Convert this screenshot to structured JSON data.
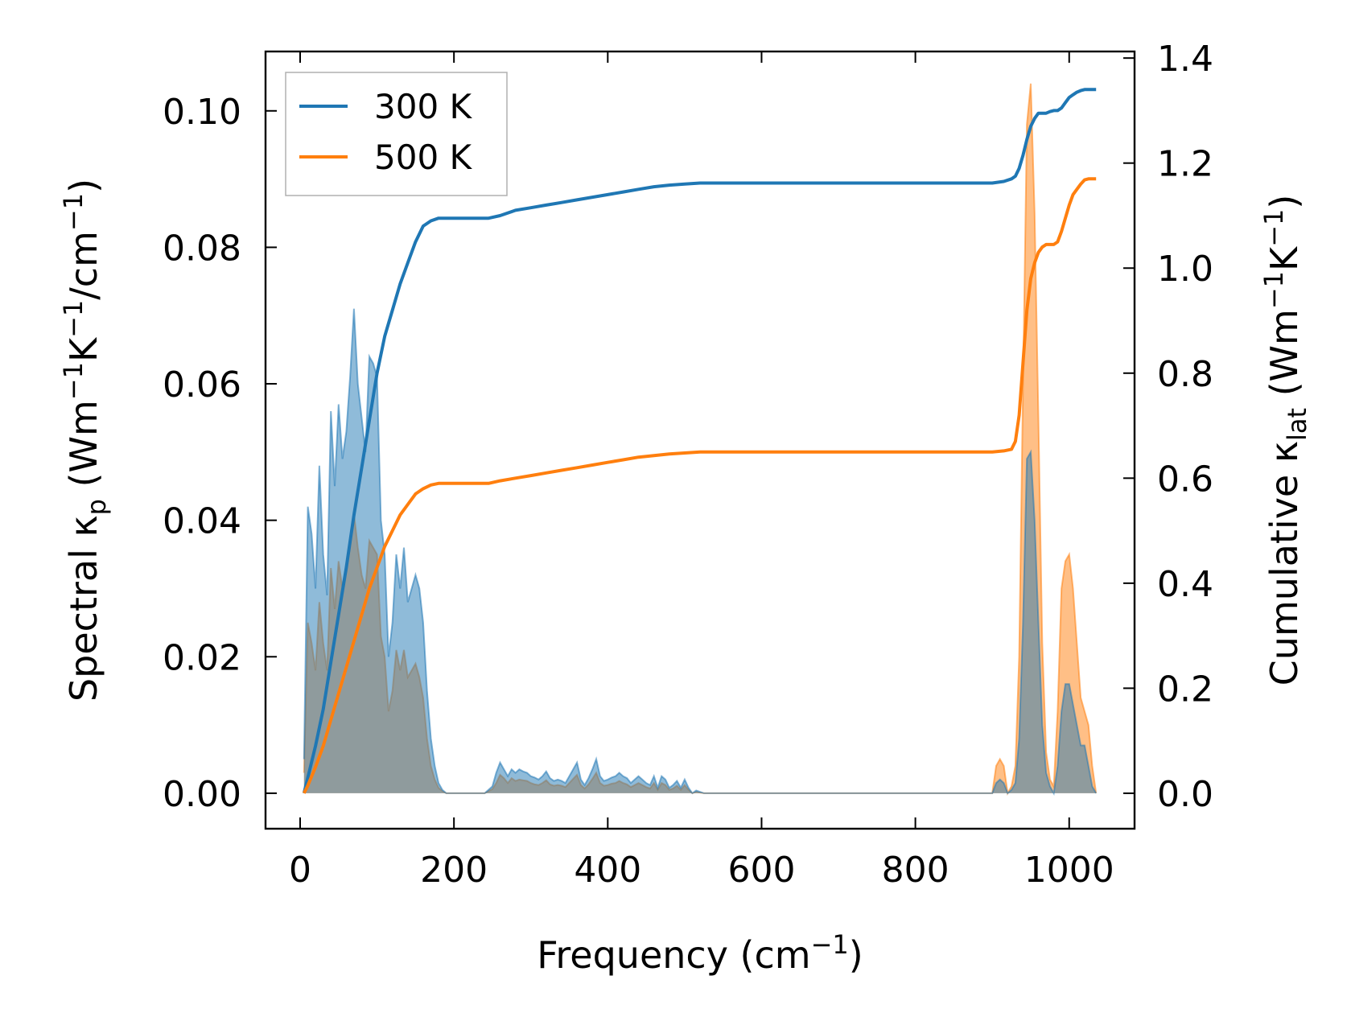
{
  "chart_data": {
    "type": "line",
    "xlabel": "Frequency (cm",
    "xlabel_sup": "−1",
    "xlabel_end": ")",
    "ylabel_left": {
      "prefix": "Spectral κ",
      "sub": "p",
      "mid1": " (Wm",
      "sup1": "−1",
      "mid2": "K",
      "sup2": "−1",
      "mid3": "/cm",
      "sup3": "−1",
      "end": ")"
    },
    "ylabel_right": {
      "prefix": "Cumulative κ",
      "sub": "lat",
      "mid1": " (Wm",
      "sup1": "−1",
      "mid2": "K",
      "sup2": "−1",
      "end": ")"
    },
    "xlim": [
      -45,
      1085
    ],
    "ylim_left": [
      -0.0052,
      0.1087
    ],
    "ylim_right": [
      -0.0675,
      1.4125
    ],
    "x_ticks": [
      0,
      200,
      400,
      600,
      800,
      1000
    ],
    "x_tick_labels": [
      "0",
      "200",
      "400",
      "600",
      "800",
      "1000"
    ],
    "y_left_ticks": [
      0.0,
      0.02,
      0.04,
      0.06,
      0.08,
      0.1
    ],
    "y_left_tick_labels": [
      "0.00",
      "0.02",
      "0.04",
      "0.06",
      "0.08",
      "0.10"
    ],
    "y_right_ticks": [
      0.0,
      0.2,
      0.4,
      0.6,
      0.8,
      1.0,
      1.2,
      1.4
    ],
    "y_right_tick_labels": [
      "0.0",
      "0.2",
      "0.4",
      "0.6",
      "0.8",
      "1.0",
      "1.2",
      "1.4"
    ],
    "legend_position": "top-left",
    "colors": {
      "300K": "#1f77b4",
      "500K": "#ff7f0e"
    },
    "series": [
      {
        "name": "300 K",
        "color": "#1f77b4",
        "spectral_x": [
          5,
          10,
          15,
          20,
          25,
          30,
          35,
          40,
          45,
          50,
          55,
          60,
          65,
          70,
          75,
          80,
          85,
          90,
          95,
          100,
          105,
          110,
          115,
          120,
          125,
          130,
          135,
          140,
          145,
          150,
          155,
          160,
          165,
          170,
          175,
          180,
          185,
          190,
          200,
          220,
          240,
          250,
          255,
          260,
          265,
          270,
          275,
          280,
          285,
          290,
          295,
          300,
          305,
          310,
          315,
          320,
          325,
          330,
          335,
          340,
          345,
          350,
          355,
          360,
          365,
          370,
          375,
          380,
          385,
          390,
          395,
          400,
          405,
          410,
          415,
          420,
          425,
          430,
          435,
          440,
          445,
          450,
          455,
          460,
          465,
          470,
          475,
          480,
          485,
          490,
          495,
          500,
          505,
          510,
          515,
          520,
          525,
          530,
          600,
          700,
          800,
          900,
          905,
          910,
          915,
          920,
          925,
          930,
          935,
          940,
          945,
          950,
          955,
          960,
          965,
          970,
          975,
          980,
          985,
          990,
          995,
          1000,
          1005,
          1010,
          1015,
          1020,
          1025,
          1030,
          1035
        ],
        "spectral_y": [
          0.005,
          0.042,
          0.038,
          0.03,
          0.048,
          0.035,
          0.029,
          0.056,
          0.045,
          0.057,
          0.049,
          0.053,
          0.061,
          0.071,
          0.06,
          0.055,
          0.05,
          0.064,
          0.063,
          0.061,
          0.04,
          0.035,
          0.02,
          0.025,
          0.035,
          0.03,
          0.036,
          0.028,
          0.03,
          0.032,
          0.03,
          0.025,
          0.015,
          0.008,
          0.004,
          0.0015,
          0.0005,
          0.0,
          0.0,
          0.0,
          0.0,
          0.001,
          0.003,
          0.0045,
          0.0035,
          0.0025,
          0.0035,
          0.003,
          0.0035,
          0.0032,
          0.003,
          0.0025,
          0.0023,
          0.002,
          0.0025,
          0.0032,
          0.0022,
          0.0018,
          0.002,
          0.0018,
          0.0015,
          0.0025,
          0.0035,
          0.0045,
          0.002,
          0.0012,
          0.0022,
          0.0035,
          0.005,
          0.0025,
          0.0018,
          0.002,
          0.0023,
          0.0025,
          0.003,
          0.0025,
          0.0022,
          0.0015,
          0.002,
          0.0025,
          0.002,
          0.0015,
          0.0012,
          0.0025,
          0.0008,
          0.0025,
          0.002,
          0.0008,
          0.0012,
          0.0018,
          0.0008,
          0.002,
          0.0008,
          0.0,
          0.0004,
          0.0002,
          0.0,
          0.0,
          0.0,
          0.0,
          0.0,
          0.0,
          0.0015,
          0.002,
          0.0015,
          0.0,
          0.0005,
          0.0015,
          0.008,
          0.025,
          0.049,
          0.05,
          0.04,
          0.025,
          0.01,
          0.003,
          0.001,
          0.0,
          0.004,
          0.012,
          0.016,
          0.016,
          0.013,
          0.01,
          0.007,
          0.007,
          0.004,
          0.001,
          0.0
        ],
        "cumulative_x": [
          5,
          10,
          20,
          30,
          40,
          50,
          60,
          70,
          80,
          90,
          100,
          110,
          120,
          130,
          140,
          150,
          160,
          170,
          180,
          200,
          220,
          245,
          260,
          280,
          300,
          320,
          340,
          360,
          380,
          400,
          420,
          440,
          460,
          480,
          500,
          520,
          540,
          600,
          700,
          800,
          900,
          915,
          925,
          930,
          935,
          940,
          945,
          950,
          955,
          960,
          965,
          970,
          975,
          980,
          985,
          990,
          995,
          1000,
          1005,
          1010,
          1015,
          1020,
          1025,
          1030,
          1035
        ],
        "cumulative_y": [
          0.0,
          0.03,
          0.09,
          0.16,
          0.25,
          0.34,
          0.43,
          0.53,
          0.62,
          0.71,
          0.8,
          0.87,
          0.92,
          0.97,
          1.01,
          1.05,
          1.08,
          1.09,
          1.095,
          1.095,
          1.095,
          1.095,
          1.1,
          1.11,
          1.115,
          1.12,
          1.125,
          1.13,
          1.135,
          1.14,
          1.145,
          1.15,
          1.155,
          1.158,
          1.16,
          1.162,
          1.162,
          1.162,
          1.162,
          1.162,
          1.162,
          1.165,
          1.17,
          1.175,
          1.19,
          1.215,
          1.245,
          1.27,
          1.285,
          1.295,
          1.295,
          1.295,
          1.298,
          1.3,
          1.3,
          1.305,
          1.315,
          1.325,
          1.33,
          1.335,
          1.338,
          1.34,
          1.34,
          1.34,
          1.34
        ]
      },
      {
        "name": "500 K",
        "color": "#ff7f0e",
        "spectral_x": [
          5,
          10,
          15,
          20,
          25,
          30,
          35,
          40,
          45,
          50,
          55,
          60,
          65,
          70,
          75,
          80,
          85,
          90,
          95,
          100,
          105,
          110,
          115,
          120,
          125,
          130,
          135,
          140,
          145,
          150,
          155,
          160,
          165,
          170,
          175,
          180,
          185,
          190,
          200,
          220,
          240,
          250,
          255,
          260,
          265,
          270,
          275,
          280,
          285,
          290,
          295,
          300,
          305,
          310,
          315,
          320,
          325,
          330,
          335,
          340,
          345,
          350,
          355,
          360,
          365,
          370,
          375,
          380,
          385,
          390,
          395,
          400,
          405,
          410,
          415,
          420,
          425,
          430,
          435,
          440,
          445,
          450,
          455,
          460,
          465,
          470,
          475,
          480,
          485,
          490,
          495,
          500,
          505,
          510,
          515,
          520,
          525,
          530,
          600,
          700,
          800,
          900,
          905,
          910,
          915,
          920,
          925,
          930,
          935,
          940,
          945,
          950,
          955,
          960,
          965,
          970,
          975,
          980,
          985,
          990,
          995,
          1000,
          1005,
          1010,
          1015,
          1020,
          1025,
          1030,
          1035
        ],
        "spectral_y": [
          0.003,
          0.025,
          0.022,
          0.018,
          0.028,
          0.022,
          0.018,
          0.033,
          0.027,
          0.034,
          0.03,
          0.033,
          0.036,
          0.041,
          0.036,
          0.032,
          0.03,
          0.037,
          0.036,
          0.035,
          0.023,
          0.02,
          0.012,
          0.015,
          0.021,
          0.018,
          0.021,
          0.017,
          0.018,
          0.019,
          0.017,
          0.014,
          0.008,
          0.004,
          0.002,
          0.0008,
          0.0003,
          0.0,
          0.0,
          0.0,
          0.0,
          0.0006,
          0.0015,
          0.0027,
          0.0022,
          0.0015,
          0.0022,
          0.0018,
          0.002,
          0.0019,
          0.0018,
          0.0015,
          0.0013,
          0.0012,
          0.0015,
          0.0019,
          0.0013,
          0.0011,
          0.0012,
          0.0011,
          0.0009,
          0.0015,
          0.0021,
          0.0027,
          0.0012,
          0.0007,
          0.0013,
          0.0021,
          0.003,
          0.0015,
          0.0011,
          0.0012,
          0.0014,
          0.0015,
          0.0018,
          0.0015,
          0.0013,
          0.0009,
          0.0012,
          0.0015,
          0.0012,
          0.0009,
          0.0007,
          0.0015,
          0.0005,
          0.0015,
          0.0012,
          0.0005,
          0.0007,
          0.0011,
          0.0005,
          0.0012,
          0.0005,
          0.0,
          0.0002,
          0.0001,
          0.0,
          0.0,
          0.0,
          0.0,
          0.0,
          0.0,
          0.004,
          0.005,
          0.004,
          0.0,
          0.001,
          0.004,
          0.02,
          0.06,
          0.098,
          0.104,
          0.085,
          0.055,
          0.022,
          0.006,
          0.002,
          0.001,
          0.012,
          0.03,
          0.034,
          0.035,
          0.03,
          0.022,
          0.014,
          0.012,
          0.01,
          0.004,
          0.0
        ],
        "cumulative_x": [
          5,
          10,
          20,
          30,
          40,
          50,
          60,
          70,
          80,
          90,
          100,
          110,
          120,
          130,
          140,
          150,
          160,
          170,
          180,
          200,
          220,
          245,
          260,
          280,
          300,
          320,
          340,
          360,
          380,
          400,
          420,
          440,
          460,
          480,
          500,
          520,
          540,
          600,
          700,
          800,
          900,
          915,
          925,
          930,
          935,
          940,
          945,
          950,
          955,
          960,
          965,
          970,
          975,
          980,
          985,
          990,
          995,
          1000,
          1005,
          1010,
          1015,
          1020,
          1025,
          1030,
          1035
        ],
        "cumulative_y": [
          0.0,
          0.015,
          0.05,
          0.09,
          0.14,
          0.19,
          0.24,
          0.29,
          0.34,
          0.39,
          0.43,
          0.47,
          0.5,
          0.53,
          0.55,
          0.57,
          0.58,
          0.587,
          0.59,
          0.59,
          0.59,
          0.59,
          0.595,
          0.6,
          0.605,
          0.61,
          0.615,
          0.62,
          0.625,
          0.63,
          0.635,
          0.64,
          0.643,
          0.646,
          0.648,
          0.65,
          0.65,
          0.65,
          0.65,
          0.65,
          0.65,
          0.652,
          0.655,
          0.67,
          0.72,
          0.82,
          0.92,
          0.98,
          1.01,
          1.03,
          1.04,
          1.045,
          1.045,
          1.045,
          1.05,
          1.07,
          1.095,
          1.12,
          1.14,
          1.15,
          1.16,
          1.168,
          1.17,
          1.17,
          1.17
        ]
      }
    ]
  }
}
